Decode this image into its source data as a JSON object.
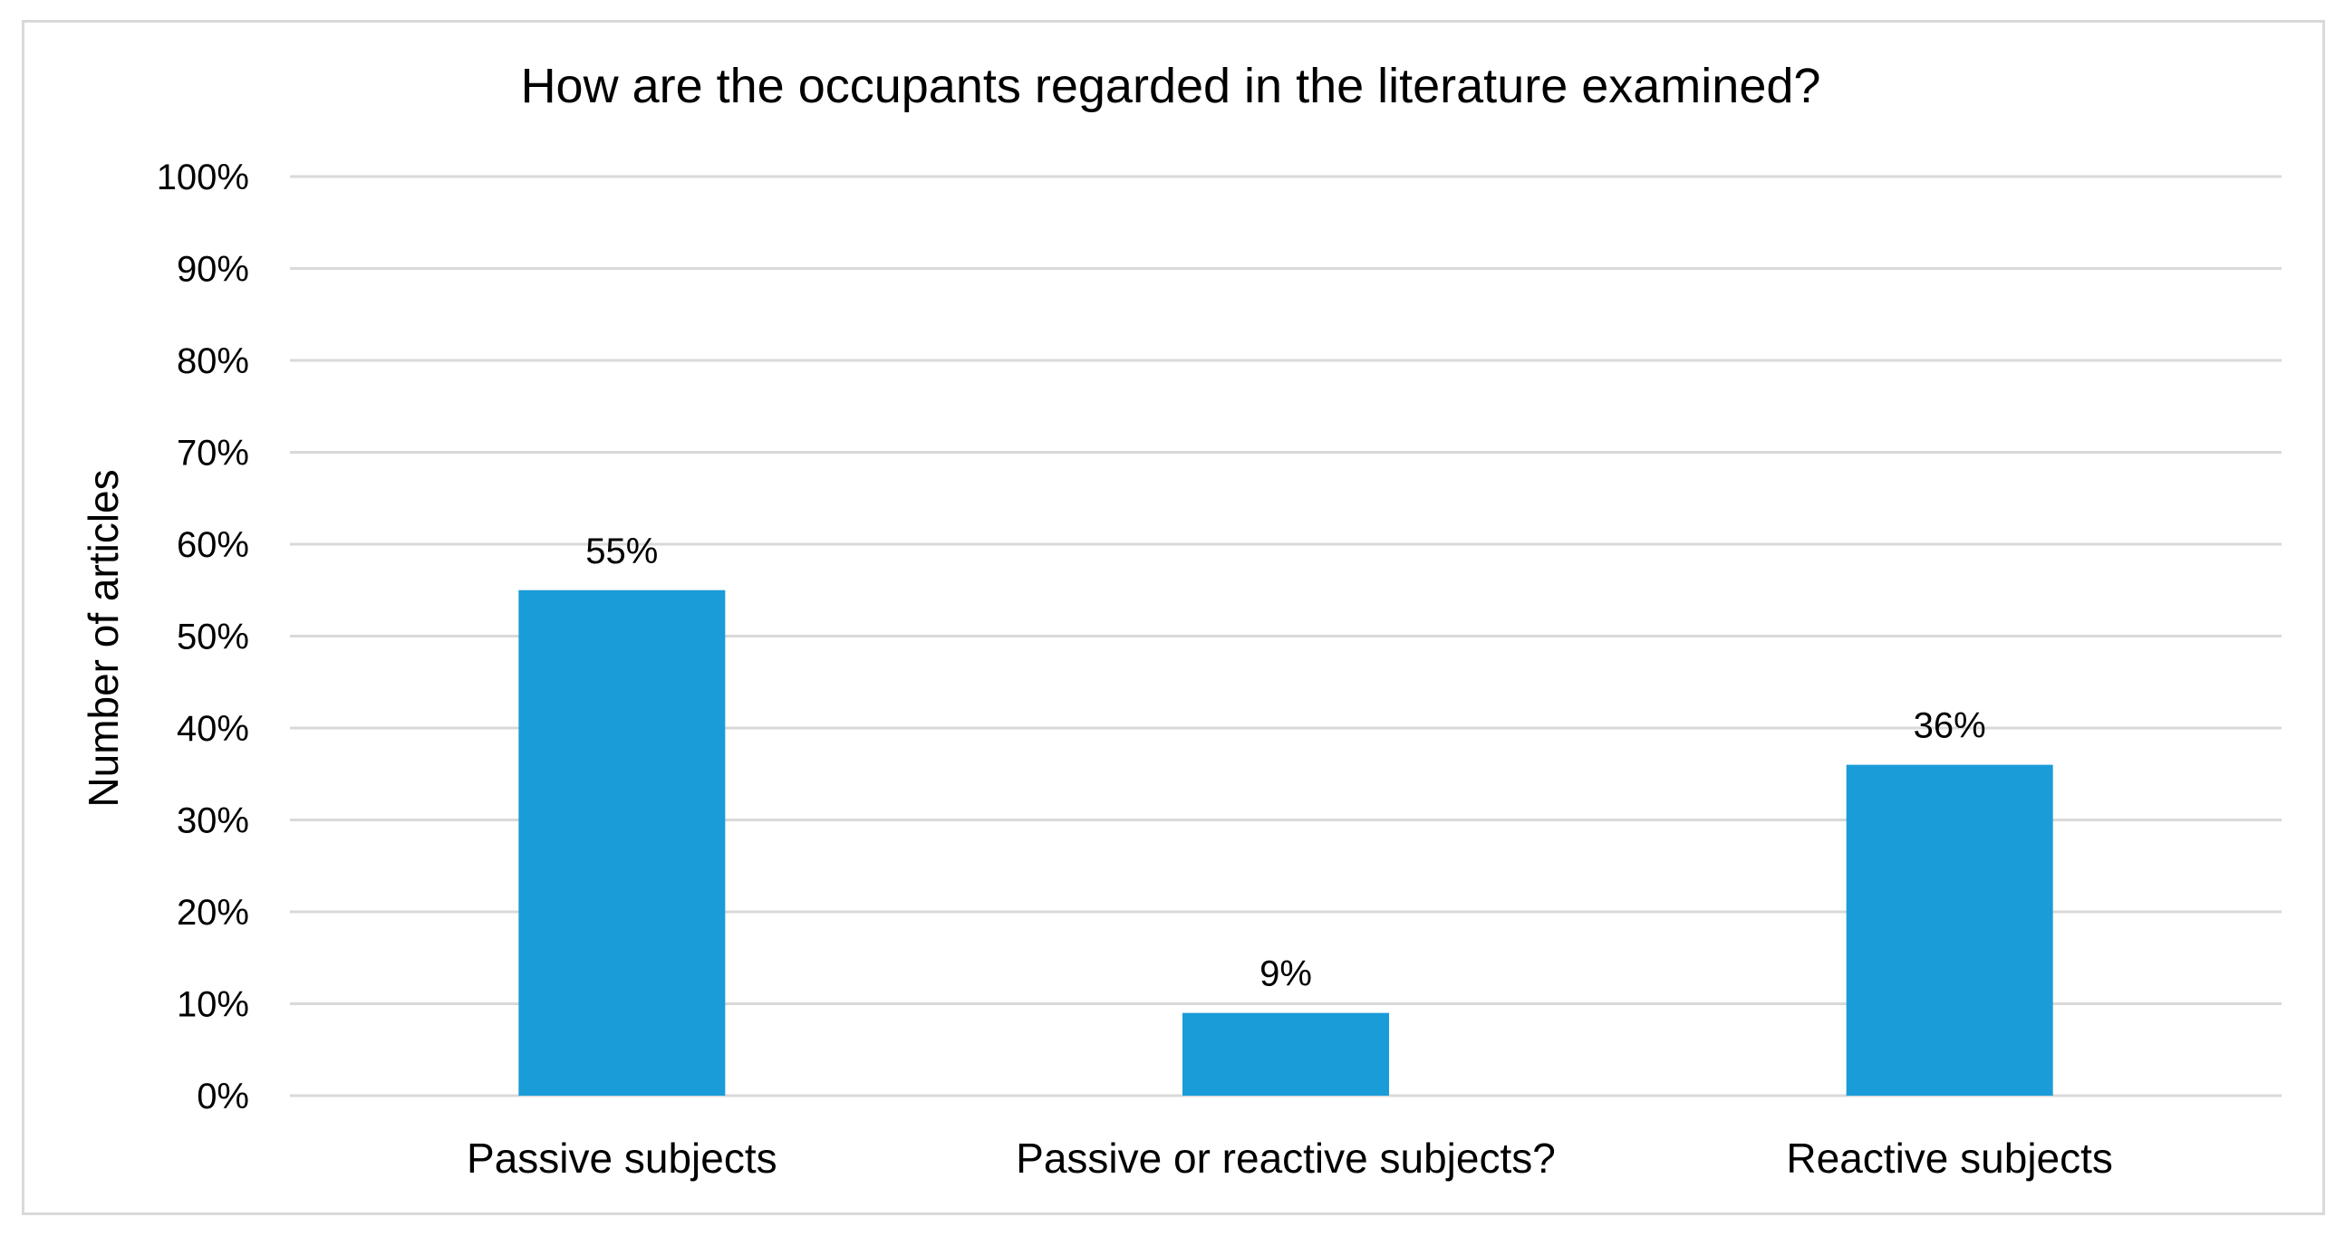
{
  "chart_data": {
    "type": "bar",
    "title": "How are the occupants regarded in the literature examined?",
    "xlabel": "",
    "ylabel": "Number of  articles",
    "categories": [
      "Passive subjects",
      "Passive or reactive subjects?",
      "Reactive subjects"
    ],
    "values": [
      55,
      9,
      36
    ],
    "value_labels": [
      "55%",
      "9%",
      "36%"
    ],
    "ylim": [
      0,
      100
    ],
    "yticks": [
      "0%",
      "10%",
      "20%",
      "30%",
      "40%",
      "50%",
      "60%",
      "70%",
      "80%",
      "90%",
      "100%"
    ],
    "grid": true,
    "legend": "none",
    "colors": {
      "bar": "#1a9cd8",
      "grid": "#d9d9d9",
      "frame": "#d9d9d9",
      "text": "#000000"
    }
  }
}
